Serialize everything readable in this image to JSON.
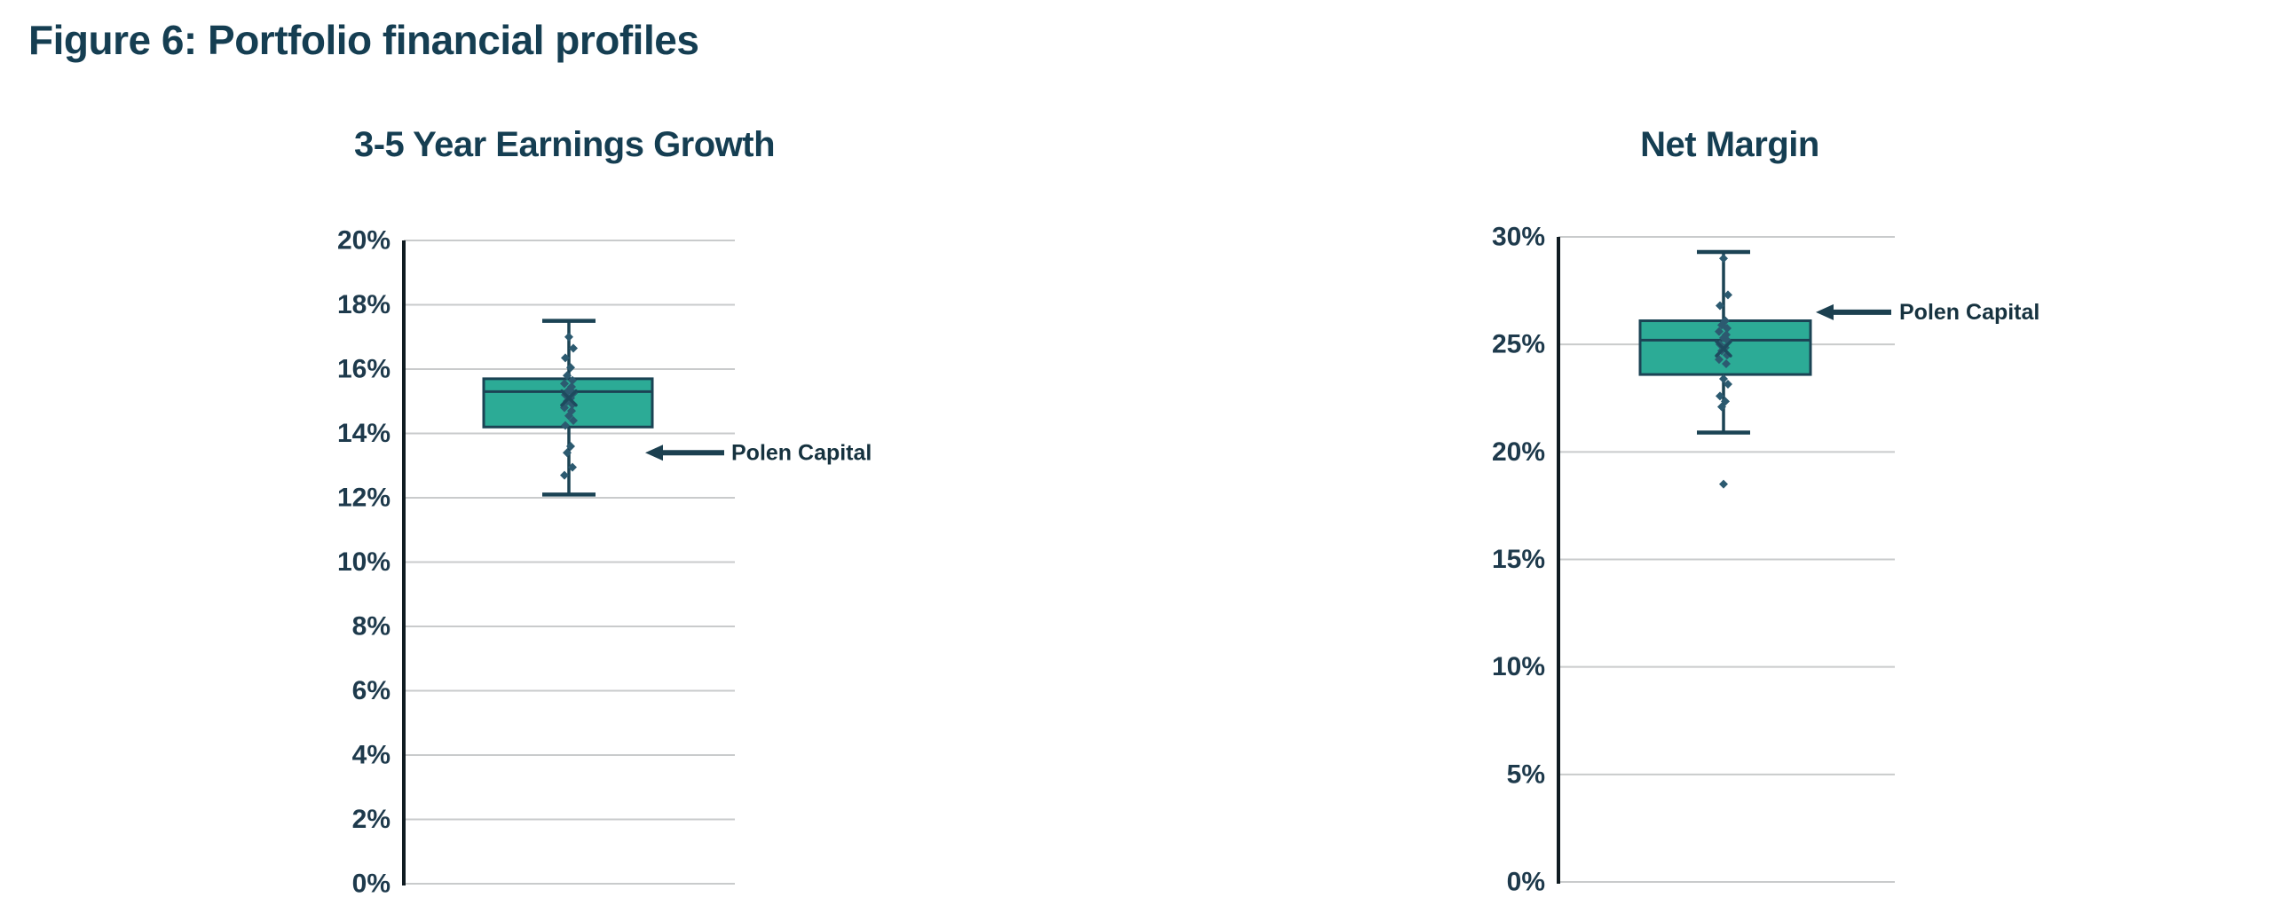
{
  "figure_title": "Figure 6: Portfolio financial profiles",
  "colors": {
    "box_fill": "#2cab96",
    "box_border": "#1b4354",
    "whisker": "#1b4354",
    "point": "#2c5a70",
    "mean_marker": "#1e4a5e",
    "grid": "#c9cbcc",
    "axis": "#101c22",
    "title_text": "#153E52",
    "tick_text": "#1e3a4c",
    "arrow": "#1c4050",
    "annotation_text": "#16323f"
  },
  "chart_data": [
    {
      "type": "box",
      "title": "3-5 Year Earnings Growth",
      "xlabel": "",
      "ylabel": "",
      "ylim": [
        0,
        20
      ],
      "ytick_step": 2,
      "ytick_labels": [
        "0%",
        "2%",
        "4%",
        "6%",
        "8%",
        "10%",
        "12%",
        "14%",
        "16%",
        "18%",
        "20%"
      ],
      "grid": true,
      "legend": "none",
      "box": {
        "whisker_low": 12.1,
        "q1": 14.2,
        "median": 15.3,
        "q3": 15.7,
        "whisker_high": 17.5,
        "mean": 15.1
      },
      "points": [
        17.0,
        16.65,
        16.35,
        16.05,
        15.8,
        15.65,
        15.55,
        15.45,
        15.35,
        15.25,
        15.2,
        15.1,
        15.0,
        14.9,
        14.8,
        14.7,
        14.55,
        14.4,
        14.25,
        13.6,
        13.4,
        12.95,
        12.7
      ],
      "outliers": [],
      "annotation": {
        "label": "Polen Capital",
        "value": 13.4,
        "side": "right"
      }
    },
    {
      "type": "box",
      "title": "Net Margin",
      "xlabel": "",
      "ylabel": "",
      "ylim": [
        0,
        30
      ],
      "ytick_step": 5,
      "ytick_labels": [
        "0%",
        "5%",
        "10%",
        "15%",
        "20%",
        "25%",
        "30%"
      ],
      "grid": true,
      "legend": "none",
      "box": {
        "whisker_low": 20.9,
        "q1": 23.6,
        "median": 25.2,
        "q3": 26.1,
        "whisker_high": 29.3,
        "mean": 24.8
      },
      "points": [
        29.0,
        27.3,
        26.8,
        26.1,
        25.9,
        25.75,
        25.6,
        25.45,
        25.3,
        25.15,
        25.0,
        24.85,
        24.7,
        24.5,
        24.3,
        24.1,
        23.4,
        23.15,
        22.6,
        22.35,
        22.1
      ],
      "outliers": [
        18.5
      ],
      "annotation": {
        "label": "Polen Capital",
        "value": 26.5,
        "side": "right"
      }
    }
  ]
}
